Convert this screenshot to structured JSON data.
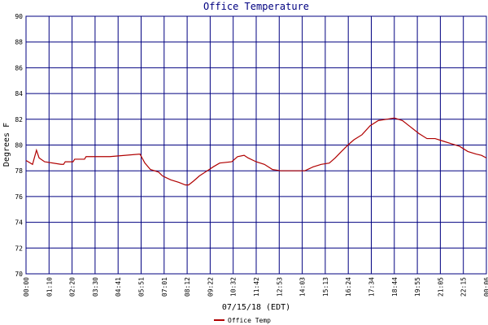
{
  "chart_data": {
    "type": "line",
    "title": "Office Temperature",
    "x_label": "07/15/18 (EDT)",
    "y_label": "Degrees F",
    "xlim": [
      0,
      1410
    ],
    "ylim": [
      70,
      90
    ],
    "xticks": [
      {
        "value": 0,
        "label": "00:00"
      },
      {
        "value": 70.5,
        "label": "01:10"
      },
      {
        "value": 141,
        "label": "02:20"
      },
      {
        "value": 211.5,
        "label": "03:30"
      },
      {
        "value": 282,
        "label": "04:41"
      },
      {
        "value": 352.5,
        "label": "05:51"
      },
      {
        "value": 423,
        "label": "07:01"
      },
      {
        "value": 493.5,
        "label": "08:12"
      },
      {
        "value": 564,
        "label": "09:22"
      },
      {
        "value": 634.5,
        "label": "10:32"
      },
      {
        "value": 705,
        "label": "11:42"
      },
      {
        "value": 775.5,
        "label": "12:53"
      },
      {
        "value": 846,
        "label": "14:03"
      },
      {
        "value": 916.5,
        "label": "15:13"
      },
      {
        "value": 987,
        "label": "16:24"
      },
      {
        "value": 1057.5,
        "label": "17:34"
      },
      {
        "value": 1128,
        "label": "18:44"
      },
      {
        "value": 1198.5,
        "label": "19:55"
      },
      {
        "value": 1269,
        "label": "21:05"
      },
      {
        "value": 1339.5,
        "label": "22:15"
      },
      {
        "value": 1410,
        "label": "00:06"
      }
    ],
    "yticks": [
      70,
      72,
      74,
      76,
      78,
      80,
      82,
      84,
      86,
      88,
      90
    ],
    "grid": true,
    "grid_color": "#000080",
    "legend": "bottom",
    "series": [
      {
        "name": "Office Temp",
        "color": "#b00000",
        "x": [
          0,
          20,
          32,
          40,
          57,
          107,
          115,
          120,
          144,
          149,
          179,
          184,
          257,
          349,
          364,
          381,
          406,
          418,
          443,
          468,
          488,
          498,
          513,
          531,
          555,
          573,
          593,
          630,
          648,
          668,
          680,
          705,
          730,
          755,
          780,
          817,
          854,
          879,
          904,
          929,
          947,
          966,
          986,
          1004,
          1029,
          1054,
          1079,
          1104,
          1128,
          1153,
          1178,
          1203,
          1228,
          1253,
          1278,
          1303,
          1328,
          1353,
          1378,
          1395,
          1410
        ],
        "values": [
          78.8,
          78.5,
          79.6,
          79.0,
          78.7,
          78.5,
          78.5,
          78.7,
          78.7,
          78.9,
          78.9,
          79.1,
          79.1,
          79.3,
          78.6,
          78.1,
          77.9,
          77.6,
          77.3,
          77.1,
          76.9,
          76.9,
          77.2,
          77.6,
          78.0,
          78.3,
          78.6,
          78.7,
          79.1,
          79.2,
          79.0,
          78.7,
          78.5,
          78.1,
          78.0,
          78.0,
          78.0,
          78.3,
          78.5,
          78.6,
          79.0,
          79.5,
          80.0,
          80.4,
          80.8,
          81.5,
          81.9,
          82.0,
          82.1,
          81.9,
          81.4,
          80.9,
          80.5,
          80.5,
          80.3,
          80.1,
          79.9,
          79.5,
          79.3,
          79.2,
          79.0
        ]
      }
    ]
  }
}
